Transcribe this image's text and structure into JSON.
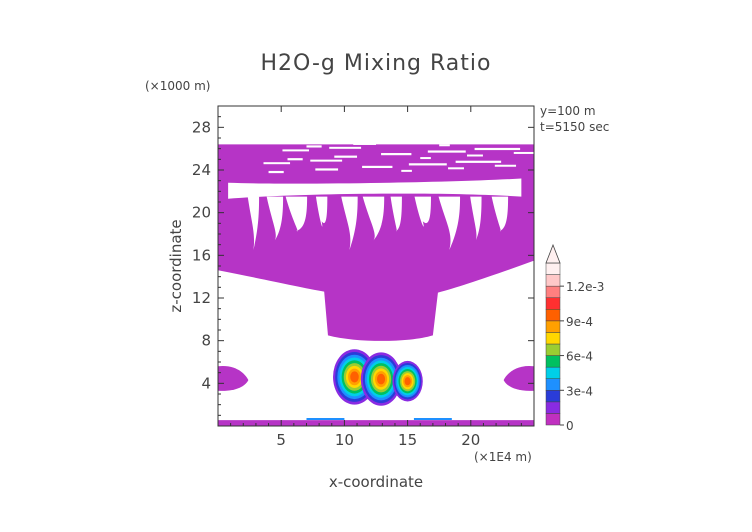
{
  "chart_data": {
    "type": "heatmap",
    "title": "H2O-g Mixing Ratio",
    "xlabel": "x-coordinate",
    "ylabel": "z-coordinate",
    "x_unit": "(×1E4 m)",
    "y_unit": "(×1000 m)",
    "annotations": [
      "y=100 m",
      "t=5150 sec"
    ],
    "x_ticks": [
      "5",
      "10",
      "15",
      "20"
    ],
    "x_tick_values": [
      5,
      10,
      15,
      20
    ],
    "y_ticks": [
      "4",
      "8",
      "12",
      "16",
      "20",
      "24",
      "28"
    ],
    "y_tick_values": [
      4,
      8,
      12,
      16,
      20,
      24,
      28
    ],
    "xlim": [
      0,
      25
    ],
    "ylim": [
      0,
      30
    ],
    "colorbar": {
      "labels": [
        "0",
        "3e-4",
        "6e-4",
        "9e-4",
        "1.2e-3"
      ],
      "label_values": [
        0,
        0.0003,
        0.0006,
        0.0009,
        0.0012
      ],
      "levels": [
        0,
        0.0001,
        0.0002,
        0.0003,
        0.0004,
        0.0005,
        0.0006,
        0.0007,
        0.0008,
        0.0009,
        0.001,
        0.0011,
        0.0012,
        0.0013
      ],
      "colors": [
        "#c030c0",
        "#8a2be2",
        "#2a3cd8",
        "#1e90ff",
        "#00cfe8",
        "#00c060",
        "#9acd32",
        "#ffd700",
        "#ffa000",
        "#ff6000",
        "#ff3030",
        "#ff8080",
        "#ffc8c8",
        "#fff0f0"
      ],
      "extend": "max"
    },
    "background_color": "#b634c6"
  }
}
